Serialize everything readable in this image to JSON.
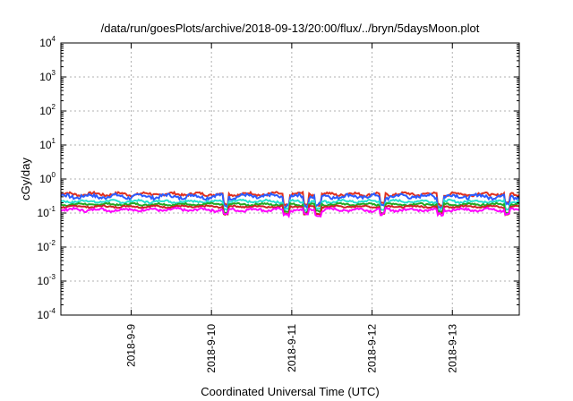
{
  "chart_data": {
    "type": "line",
    "title": "/data/run/goesPlots/archive/2018-09-13/20:00/flux/../bryn/5daysMoon.plot",
    "xlabel": "Coordinated Universal Time (UTC)",
    "ylabel": "cGy/day",
    "yscale": "log",
    "ylim": [
      0.0001,
      10000
    ],
    "xlim": [
      "2018-09-08 03:00",
      "2018-09-13 20:00"
    ],
    "x_ticks": [
      "2018-9-9",
      "2018-9-10",
      "2018-9-11",
      "2018-9-12",
      "2018-9-13"
    ],
    "y_ticks": [
      {
        "base": "10",
        "exp": "-4",
        "value": 0.0001
      },
      {
        "base": "10",
        "exp": "-3",
        "value": 0.001
      },
      {
        "base": "10",
        "exp": "-2",
        "value": 0.01
      },
      {
        "base": "10",
        "exp": "-1",
        "value": 0.1
      },
      {
        "base": "10",
        "exp": "0",
        "value": 1
      },
      {
        "base": "10",
        "exp": "1",
        "value": 10
      },
      {
        "base": "10",
        "exp": "2",
        "value": 100
      },
      {
        "base": "10",
        "exp": "3",
        "value": 1000
      },
      {
        "base": "10",
        "exp": "4",
        "value": 10000
      }
    ],
    "grid": true,
    "series": [
      {
        "color": "#e0301e",
        "level": 0.36,
        "amp": 0.06,
        "dips": 0.5
      },
      {
        "color": "#2b5cff",
        "level": 0.31,
        "amp": 0.07,
        "dips": 0.55
      },
      {
        "color": "#22e0d0",
        "level": 0.22,
        "amp": 0.03,
        "dips": 0.6
      },
      {
        "color": "#22aa22",
        "level": 0.18,
        "amp": 0.02,
        "dips": 0.6
      },
      {
        "color": "#cc2222",
        "level": 0.155,
        "amp": 0.015,
        "dips": 0.6
      },
      {
        "color": "#ff00ff",
        "level": 0.125,
        "amp": 0.02,
        "dips": 0.7
      }
    ],
    "dip_days": [
      2.05,
      2.8,
      3.05,
      3.2,
      4.0,
      4.72,
      5.55
    ]
  }
}
